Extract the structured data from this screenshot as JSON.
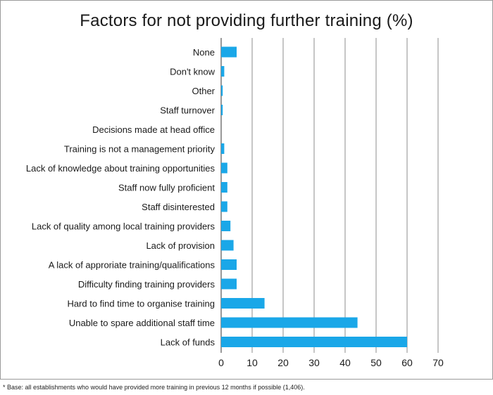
{
  "chart_data": {
    "type": "bar",
    "orientation": "horizontal",
    "title": "Factors for not providing further training (%)",
    "categories": [
      "None",
      "Don't know",
      "Other",
      "Staff turnover",
      "Decisions made at head office",
      "Training is not a management priority",
      "Lack of knowledge about training opportunities",
      "Staff now fully proficient",
      "Staff disinterested",
      "Lack of quality among local training providers",
      "Lack of provision",
      "A lack of approriate training/qualifications",
      "Difficulty finding training providers",
      "Hard to find time to organise training",
      "Unable to spare additional staff time",
      "Lack of funds"
    ],
    "values": [
      5,
      1,
      0.5,
      0.5,
      0,
      1,
      2,
      2,
      2,
      3,
      4,
      5,
      5,
      14,
      44,
      60
    ],
    "xlim": [
      0,
      70
    ],
    "xticks": [
      0,
      10,
      20,
      30,
      40,
      50,
      60,
      70
    ],
    "grid": true,
    "bar_color": "#1aa7e8"
  },
  "footnote": "* Base: all establishments who would have provided more training in previous 12 months if possible (1,406)."
}
